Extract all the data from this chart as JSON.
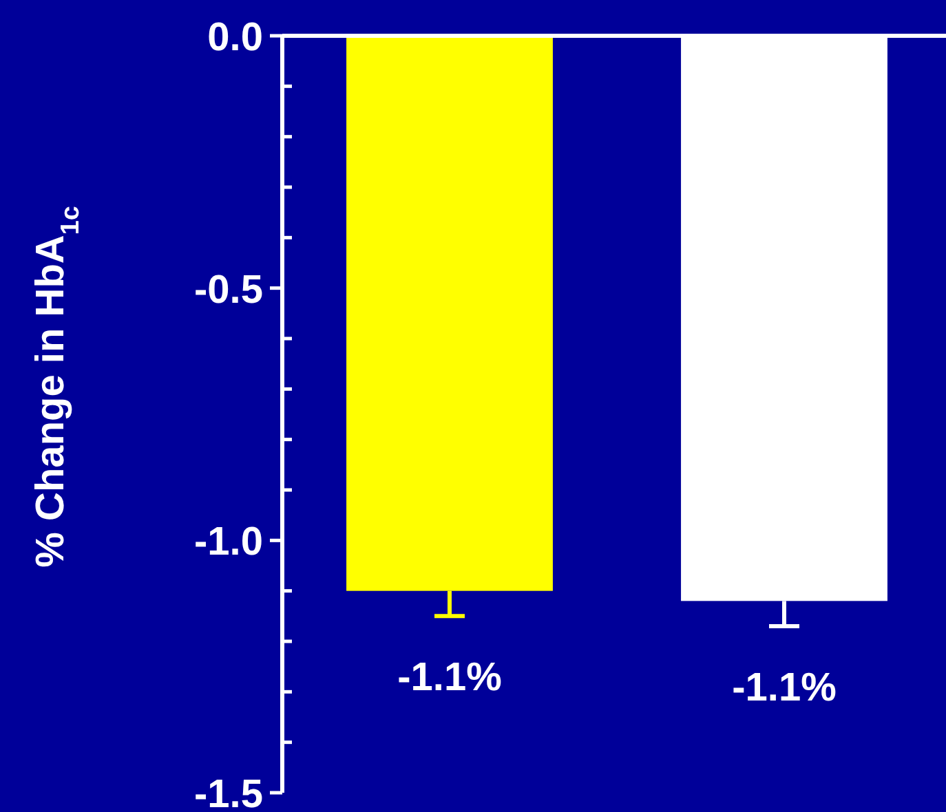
{
  "chart_data": {
    "type": "bar",
    "ylabel": "% Change in HbA$_{1c}$",
    "categories": [
      null,
      null
    ],
    "series": [
      {
        "values": [
          -1.1,
          -1.12
        ],
        "colors": [
          "#ffff00",
          "#ffffff"
        ],
        "errors": [
          [
            -1.15,
            -1.1
          ],
          [
            -1.17,
            -1.12
          ]
        ],
        "value_labels": [
          "-1.1%",
          "-1.1%"
        ]
      }
    ],
    "ylim": [
      -1.5,
      0
    ],
    "yticks": [
      {
        "value": 0,
        "label": "0.0"
      },
      {
        "value": -0.1,
        "label": null
      },
      {
        "value": -0.2,
        "label": null
      },
      {
        "value": -0.3,
        "label": null
      },
      {
        "value": -0.4,
        "label": null
      },
      -0.5,
      {
        "value": -0.6,
        "label": null
      },
      {
        "value": -0.7,
        "label": null
      },
      {
        "value": -0.8,
        "label": null
      },
      {
        "value": -0.9,
        "label": null
      },
      {
        "value": -1,
        "label": "-1.0"
      },
      {
        "value": -1.1,
        "label": null
      },
      {
        "value": -1.2,
        "label": null
      },
      {
        "value": -1.3,
        "label": null
      },
      {
        "value": -1.4,
        "label": null
      },
      -1.5
    ],
    "grid": false
  }
}
